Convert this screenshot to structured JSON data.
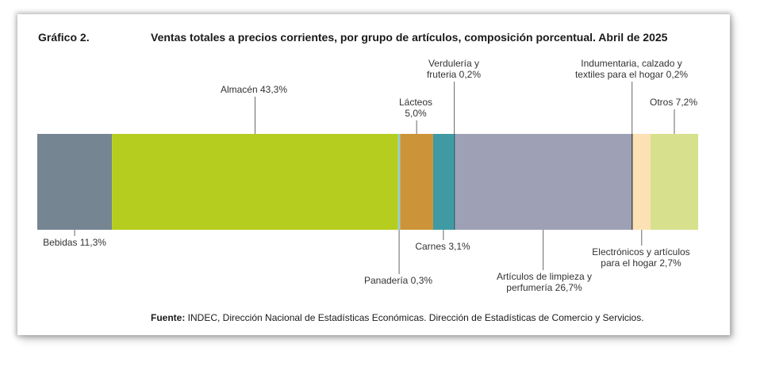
{
  "header": {
    "label": "Gráfico 2.",
    "title": "Ventas totales a precios corrientes, por grupo de artículos, composición porcentual. Abril de 2025"
  },
  "source": {
    "prefix": "Fuente:",
    "text": " INDEC, Dirección Nacional de Estadísticas Económicas. Dirección de Estadísticas de Comercio y Servicios."
  },
  "chart_data": {
    "type": "bar",
    "stacked": true,
    "orientation": "horizontal",
    "unit": "%",
    "categories": [
      "Bebidas",
      "Almacén",
      "Panadería",
      "Lácteos",
      "Carnes",
      "Verdulería y frutería",
      "Artículos de limpieza y perfumería",
      "Indumentaria, calzado y textiles para el hogar",
      "Electrónicos y artículos para el hogar",
      "Otros"
    ],
    "values": [
      11.3,
      43.3,
      0.3,
      5.0,
      3.1,
      0.2,
      26.7,
      0.2,
      2.7,
      7.2
    ],
    "labels": [
      [
        "Bebidas 11,3%"
      ],
      [
        "Almacén 43,3%"
      ],
      [
        "Panadería 0,3%"
      ],
      [
        "Lácteos",
        "5,0%"
      ],
      [
        "Carnes 3,1%"
      ],
      [
        "Verdulería y",
        "fruteria 0,2%"
      ],
      [
        "Artículos de limpieza y",
        "perfumería 26,7%"
      ],
      [
        "Indumentaria, calzado y",
        "textiles para el hogar 0,2%"
      ],
      [
        "Electrónicos y artículos",
        "para el hogar 2,7%"
      ],
      [
        "Otros 7,2%"
      ]
    ],
    "label_side": [
      "below",
      "above",
      "below",
      "above",
      "below",
      "above",
      "below",
      "above",
      "below",
      "above"
    ],
    "colors": [
      "#758592",
      "#b5cd1e",
      "#8fd0dc",
      "#cc9338",
      "#3f9aa3",
      "#1f6f7a",
      "#9ea0b5",
      "#4d4d4d",
      "#fbe1b4",
      "#d7e08c"
    ]
  }
}
